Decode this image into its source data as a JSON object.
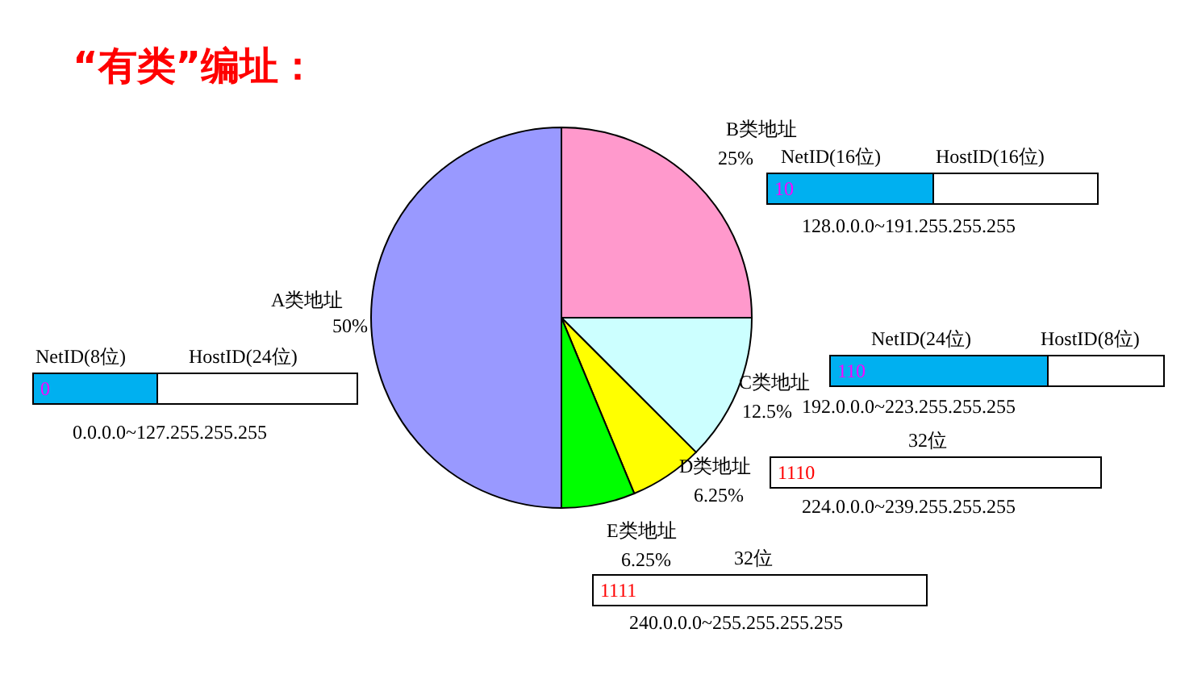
{
  "chart_data": {
    "type": "pie",
    "title": "“有类”编址：",
    "categories": [
      "B类地址",
      "C类地址",
      "D类地址",
      "E类地址",
      "A类地址"
    ],
    "values": [
      25,
      12.5,
      6.25,
      6.25,
      50
    ],
    "value_labels": [
      "25%",
      "12.5%",
      "6.25%",
      "6.25%",
      "50%"
    ],
    "colors": [
      "#ff99cc",
      "#ccffff",
      "#ffff00",
      "#00ff00",
      "#9999ff"
    ],
    "annotations": [
      "NetID(8位)",
      "HostID(24位)",
      "0",
      "0.0.0.0~127.255.255.255",
      "NetID(16位)",
      "HostID(16位)",
      "10",
      "128.0.0.0~191.255.255.255",
      "NetID(24位)",
      "HostID(8位)",
      "110",
      "192.0.0.0~223.255.255.255",
      "32位",
      "1110",
      "224.0.0.0~239.255.255.255",
      "32位",
      "1111",
      "240.0.0.0~255.255.255.255"
    ]
  }
}
